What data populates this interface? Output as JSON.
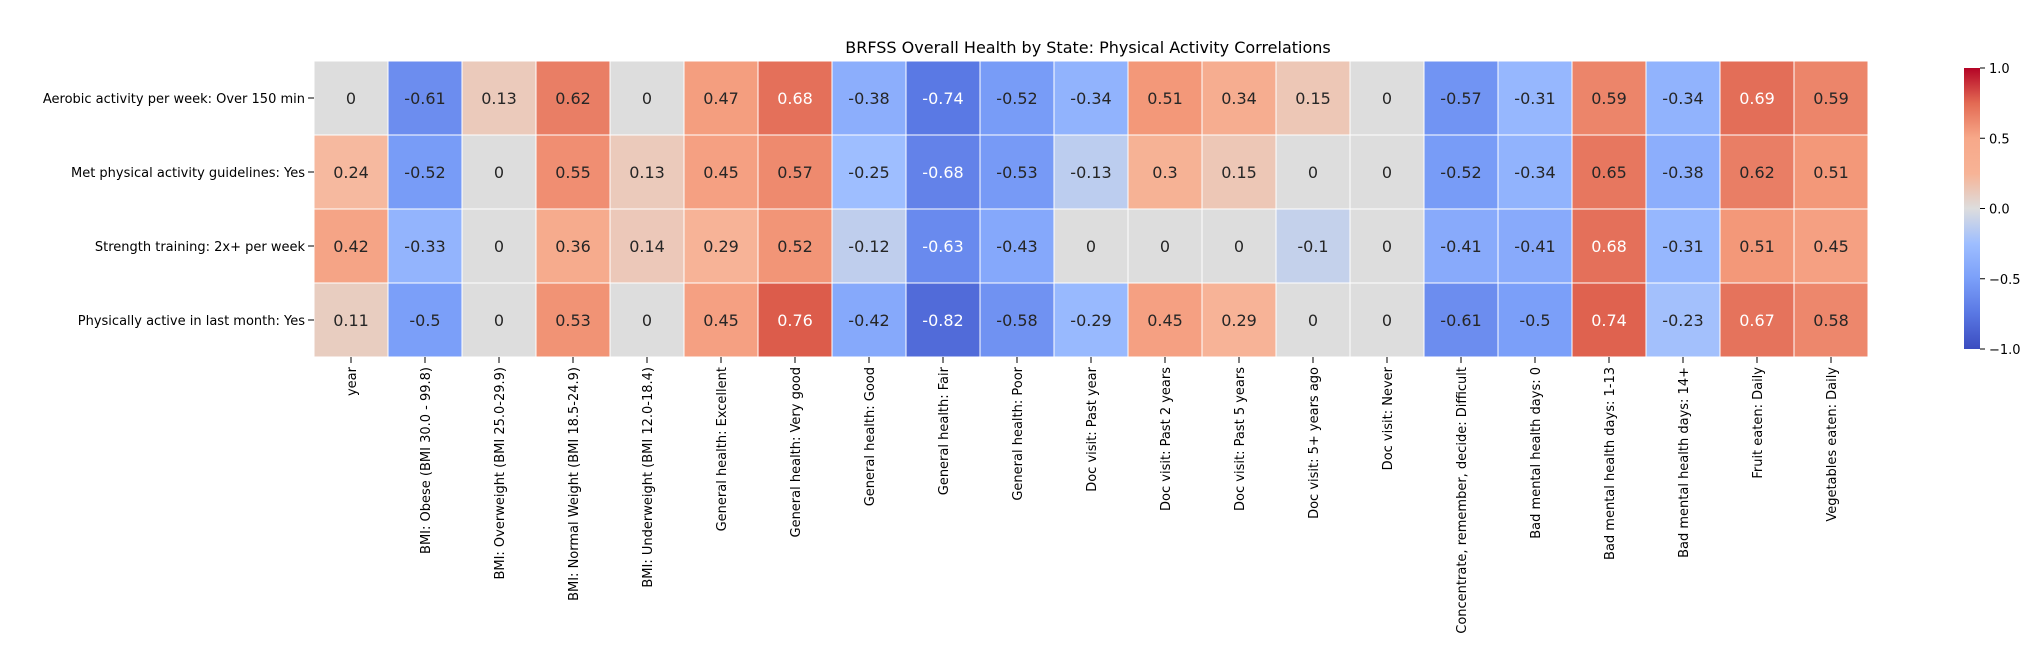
{
  "chart_data": {
    "type": "heatmap",
    "title": "BRFSS Overall Health by State: Physical Activity Correlations",
    "rows": [
      "Aerobic activity per week: Over 150 min",
      "Met physical activity guidelines: Yes",
      "Strength training: 2x+ per week",
      "Physically active in last month: Yes"
    ],
    "columns": [
      "year",
      "BMI: Obese (BMI 30.0 - 99.8)",
      "BMI: Overweight (BMI 25.0-29.9)",
      "BMI: Normal Weight (BMI 18.5-24.9)",
      "BMI: Underweight (BMI 12.0-18.4)",
      "General health: Excellent",
      "General health: Very good",
      "General health: Good",
      "General health: Fair",
      "General health: Poor",
      "Doc visit: Past year",
      "Doc visit: Past 2 years",
      "Doc visit: Past 5 years",
      "Doc visit: 5+ years ago",
      "Doc visit: Never",
      "Concentrate, remember, decide: Difficult",
      "Bad mental health days: 0",
      "Bad mental health days: 1-13",
      "Bad mental health days: 14+",
      "Fruit eaten: Daily",
      "Vegetables eaten: Daily"
    ],
    "values": [
      [
        0,
        -0.61,
        0.13,
        0.62,
        0,
        0.47,
        0.68,
        -0.38,
        -0.74,
        -0.52,
        -0.34,
        0.51,
        0.34,
        0.15,
        0,
        -0.57,
        -0.31,
        0.59,
        -0.34,
        0.69,
        0.59
      ],
      [
        0.24,
        -0.52,
        0,
        0.55,
        0.13,
        0.45,
        0.57,
        -0.25,
        -0.68,
        -0.53,
        -0.13,
        0.3,
        0.15,
        0,
        0,
        -0.52,
        -0.34,
        0.65,
        -0.38,
        0.62,
        0.51
      ],
      [
        0.42,
        -0.33,
        0,
        0.36,
        0.14,
        0.29,
        0.52,
        -0.12,
        -0.63,
        -0.43,
        0,
        0,
        0,
        -0.1,
        0,
        -0.41,
        -0.41,
        0.68,
        -0.31,
        0.51,
        0.45
      ],
      [
        0.11,
        -0.5,
        0,
        0.53,
        0,
        0.45,
        0.76,
        -0.42,
        -0.82,
        -0.58,
        -0.29,
        0.45,
        0.29,
        0,
        0,
        -0.61,
        -0.5,
        0.74,
        -0.23,
        0.67,
        0.58
      ]
    ],
    "colormap": "coolwarm",
    "vmin": -1.0,
    "vmax": 1.0,
    "colorbar_ticks": [
      "1.0",
      "0.5",
      "0.0",
      "−0.5",
      "−1.0"
    ],
    "colorbar_tick_values": [
      1.0,
      0.5,
      0.0,
      -0.5,
      -1.0
    ]
  }
}
